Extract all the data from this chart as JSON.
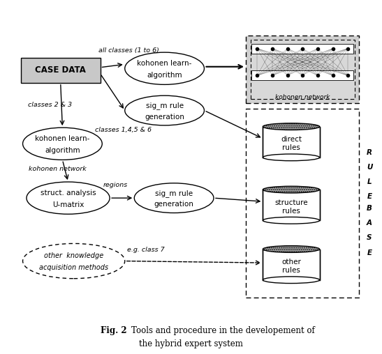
{
  "background_color": "#ffffff",
  "fig_width": 5.47,
  "fig_height": 5.08,
  "dpi": 100,
  "title_bold": "Fig. 2 ",
  "title_normal1": "Tools and procedure in the developement of",
  "title_line2": "the hybrid expert system"
}
